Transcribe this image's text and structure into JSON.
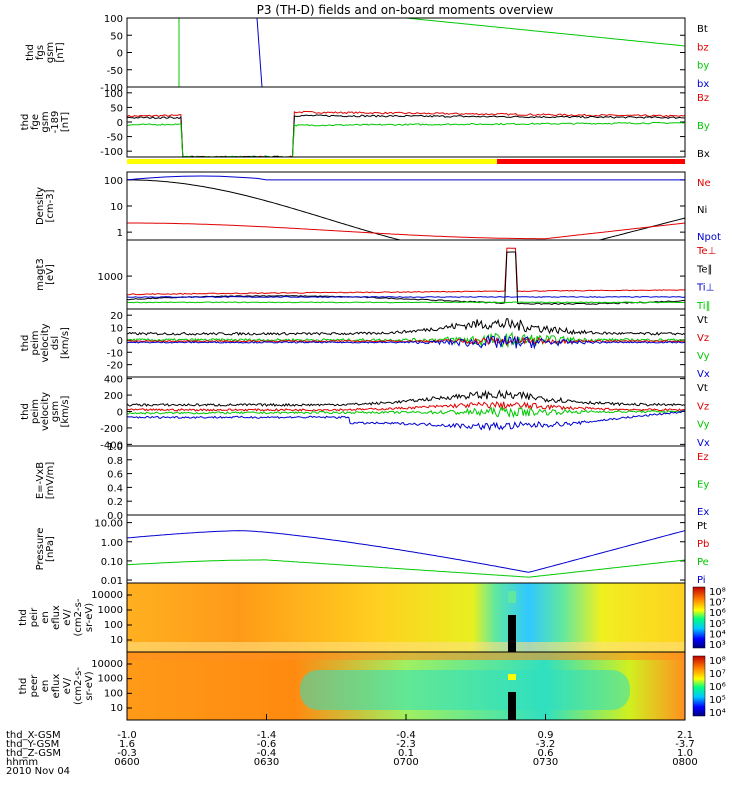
{
  "title": "P3 (TH-D) fields and on-board moments overview",
  "colors": {
    "black": "#000000",
    "red": "#e00000",
    "green": "#00c800",
    "blue": "#0000d0",
    "yellow": "#ffff00",
    "bar_red": "#ff0000"
  },
  "chart_data": [
    {
      "id": "fgs",
      "type": "line",
      "ylabel": [
        "thd",
        "fgs",
        "gsm",
        "[nT]"
      ],
      "ylim": [
        -100,
        100
      ],
      "ticks": [
        100,
        50,
        0,
        -50,
        -100
      ],
      "legend": [
        {
          "name": "Bt",
          "color": "black"
        },
        {
          "name": "bz",
          "color": "red"
        },
        {
          "name": "by",
          "color": "green"
        },
        {
          "name": "bx",
          "color": "blue"
        }
      ]
    },
    {
      "id": "fge",
      "type": "line",
      "ylabel": [
        "thd",
        "fge",
        "gsm",
        "-189",
        "[nT]"
      ],
      "ylim": [
        -120,
        120
      ],
      "ticks": [
        100,
        50,
        0,
        -50,
        -100
      ],
      "legend": [
        {
          "name": "Bz",
          "color": "red"
        },
        {
          "name": "By",
          "color": "green"
        },
        {
          "name": "Bx",
          "color": "black"
        }
      ]
    },
    {
      "id": "density",
      "type": "line",
      "log": true,
      "ylabel": [
        "Density",
        "[cm-3]"
      ],
      "ylim": [
        0.5,
        200
      ],
      "ticks": [
        100,
        10,
        1
      ],
      "legend": [
        {
          "name": "Ne",
          "color": "red"
        },
        {
          "name": "Ni",
          "color": "black"
        },
        {
          "name": "Npot",
          "color": "blue"
        }
      ]
    },
    {
      "id": "temp",
      "type": "line",
      "log": true,
      "ylabel": [
        "magt3",
        "[eV]"
      ],
      "ylim": [
        150,
        8000
      ],
      "ticks": [
        1000
      ],
      "legend": [
        {
          "name": "Te⊥",
          "color": "red"
        },
        {
          "name": "Te∥",
          "color": "black"
        },
        {
          "name": "Ti⊥",
          "color": "blue"
        },
        {
          "name": "Ti∥",
          "color": "green"
        }
      ]
    },
    {
      "id": "vel_esm",
      "type": "line",
      "ylabel": [
        "thd",
        "peim",
        "velocity",
        "dsl",
        "[km/s]"
      ],
      "ylim": [
        -30,
        25
      ],
      "ticks": [
        20,
        10,
        0,
        -10,
        -20
      ],
      "legend": [
        {
          "name": "Vt",
          "color": "black"
        },
        {
          "name": "Vz",
          "color": "red"
        },
        {
          "name": "Vy",
          "color": "green"
        },
        {
          "name": "Vx",
          "color": "blue"
        }
      ]
    },
    {
      "id": "vel_gsm",
      "type": "line",
      "ylabel": [
        "thd",
        "peim",
        "velocity",
        "gsm",
        "[km/s]"
      ],
      "ylim": [
        -420,
        420
      ],
      "ticks": [
        400,
        200,
        0,
        -200,
        -400
      ],
      "legend": [
        {
          "name": "Vt",
          "color": "black"
        },
        {
          "name": "Vz",
          "color": "red"
        },
        {
          "name": "Vy",
          "color": "green"
        },
        {
          "name": "Vx",
          "color": "blue"
        }
      ]
    },
    {
      "id": "efield",
      "type": "line",
      "ylabel": [
        "E=-VxB",
        "[mV/m]"
      ],
      "ylim": [
        0,
        1
      ],
      "ticks": [
        "1.0",
        "0.8",
        "0.6",
        "0.4",
        "0.2",
        "0.0"
      ],
      "legend": [
        {
          "name": "Ez",
          "color": "red"
        },
        {
          "name": "Ey",
          "color": "green"
        },
        {
          "name": "Ex",
          "color": "blue"
        }
      ]
    },
    {
      "id": "pressure",
      "type": "line",
      "log": true,
      "ylabel": [
        "Pressure",
        "[nPa]"
      ],
      "ylim": [
        0.007,
        25
      ],
      "ticks": [
        "10.00",
        "1.00",
        "0.10",
        "0.01"
      ],
      "legend": [
        {
          "name": "Pt",
          "color": "black"
        },
        {
          "name": "Pb",
          "color": "red"
        },
        {
          "name": "Pe",
          "color": "green"
        },
        {
          "name": "Pi",
          "color": "blue"
        }
      ]
    },
    {
      "id": "ion_spec",
      "type": "heatmap",
      "ylabel": [
        "thd",
        "peir",
        "en",
        "eflux",
        "eV/",
        "(cm2-s-",
        "sr-eV)"
      ],
      "ticks": [
        "10000",
        "1000",
        "100",
        "10"
      ],
      "colorbar": [
        "10⁸",
        "10⁷",
        "10⁶",
        "10⁵",
        "10⁴",
        "10³"
      ]
    },
    {
      "id": "elec_spec",
      "type": "heatmap",
      "ylabel": [
        "thd",
        "peer",
        "en",
        "eflux",
        "eV/",
        "(cm2-s-",
        "sr-eV)"
      ],
      "ticks": [
        "10000",
        "1000",
        "100",
        "10"
      ],
      "colorbar": [
        "10⁸",
        "10⁷",
        "10⁶",
        "10⁵",
        "10⁴"
      ]
    }
  ],
  "x_axis": {
    "row_labels": [
      "thd_X-GSM",
      "thd_Y-GSM",
      "thd_Z-GSM",
      "hhmm",
      "2010 Nov 04"
    ],
    "columns": [
      [
        "-1.0",
        "1.6",
        "-0.3",
        "0600"
      ],
      [
        "-1.4",
        "-0.6",
        "-0.4",
        "0630"
      ],
      [
        "-0.4",
        "-2.3",
        "0.1",
        "0700"
      ],
      [
        "0.9",
        "-3.2",
        "0.6",
        "0730"
      ],
      [
        "2.1",
        "-3.7",
        "1.0",
        "0800"
      ]
    ]
  }
}
